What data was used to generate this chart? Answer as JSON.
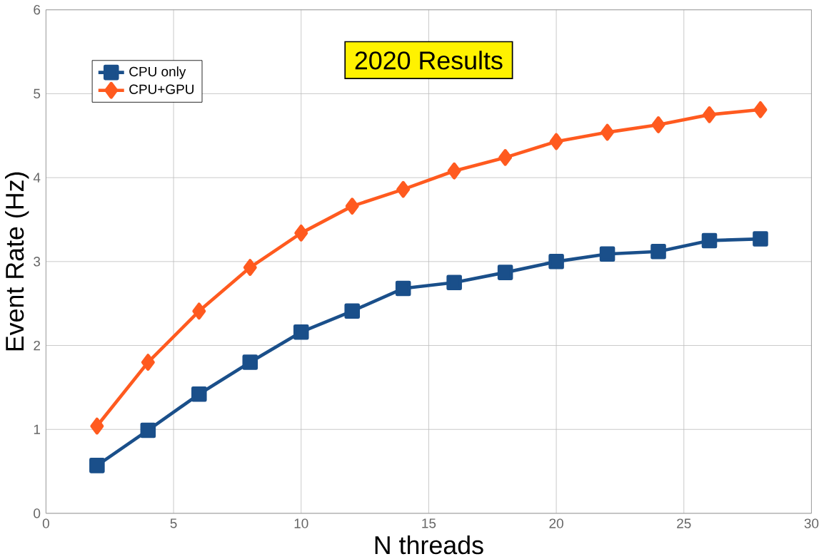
{
  "chart_data": {
    "type": "line",
    "title": "2020 Results",
    "xlabel": "N threads",
    "ylabel": "Event Rate (Hz)",
    "x": [
      2,
      4,
      6,
      8,
      10,
      12,
      14,
      16,
      18,
      20,
      22,
      24,
      26,
      28
    ],
    "series": [
      {
        "name": "CPU only",
        "color": "#1a4f8a",
        "marker": "square",
        "values": [
          0.57,
          0.99,
          1.42,
          1.8,
          2.16,
          2.41,
          2.68,
          2.75,
          2.87,
          3.0,
          3.09,
          3.12,
          3.25,
          3.27
        ]
      },
      {
        "name": "CPU+GPU",
        "color": "#ff5a1f",
        "marker": "diamond",
        "values": [
          1.04,
          1.8,
          2.41,
          2.93,
          3.34,
          3.66,
          3.86,
          4.08,
          4.24,
          4.43,
          4.54,
          4.63,
          4.75,
          4.81
        ]
      }
    ],
    "xlim": [
      0,
      30
    ],
    "xticks": [
      0,
      5,
      10,
      15,
      20,
      25,
      30
    ],
    "ylim": [
      0,
      6
    ],
    "yticks": [
      0,
      1,
      2,
      3,
      4,
      5,
      6
    ],
    "grid": true,
    "legend": "top left",
    "line_style": "solid"
  }
}
